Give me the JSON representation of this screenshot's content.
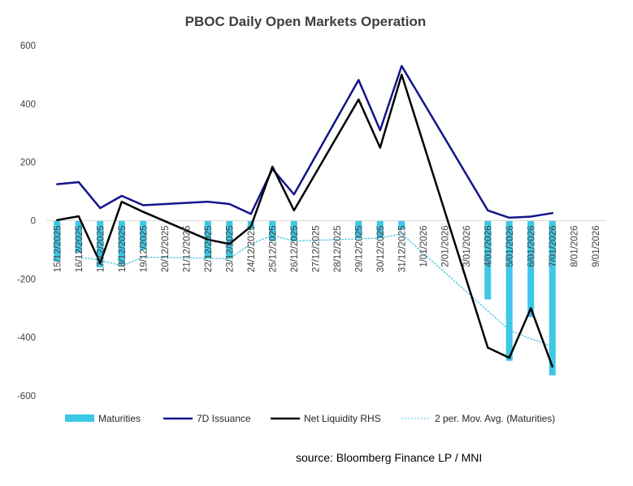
{
  "chart_data": {
    "type": "bar",
    "title": "PBOC Daily Open Markets Operation",
    "source": "source:  Bloomberg Finance LP / MNI",
    "categories": [
      "15/12/2025",
      "16/12/2025",
      "17/12/2025",
      "18/12/2025",
      "19/12/2025",
      "20/12/2025",
      "21/12/2025",
      "22/12/2025",
      "23/12/2025",
      "24/12/2025",
      "25/12/2025",
      "26/12/2025",
      "27/12/2025",
      "28/12/2025",
      "29/12/2025",
      "30/12/2025",
      "31/12/2025",
      "1/01/2026",
      "2/01/2026",
      "3/01/2026",
      "4/01/2026",
      "5/01/2026",
      "6/01/2026",
      "7/01/2026",
      "8/01/2026",
      "9/01/2026"
    ],
    "ylim": [
      -600,
      600
    ],
    "yticks": [
      -600,
      -400,
      -200,
      0,
      200,
      400,
      600
    ],
    "grid": false,
    "legend_position": "bottom",
    "series": [
      {
        "name": "Maturities",
        "type": "bar",
        "color": "#3cc8e6",
        "values": [
          -140,
          -110,
          -160,
          -150,
          -100,
          null,
          null,
          -130,
          -130,
          -30,
          -70,
          -70,
          null,
          null,
          -60,
          -60,
          -30,
          null,
          null,
          null,
          -270,
          -480,
          -330,
          -530,
          null,
          null
        ]
      },
      {
        "name": "7D Issuance",
        "type": "line",
        "color": "#14148c",
        "values": [
          125,
          132,
          43,
          85,
          53,
          null,
          null,
          65,
          57,
          23,
          177,
          90,
          null,
          null,
          482,
          310,
          530,
          null,
          null,
          null,
          35,
          10,
          14,
          26,
          null,
          null
        ]
      },
      {
        "name": "Net Liquidity RHS",
        "type": "line",
        "color": "#000000",
        "values": [
          2,
          15,
          -145,
          65,
          30,
          null,
          null,
          -65,
          -80,
          -20,
          185,
          35,
          null,
          null,
          415,
          250,
          500,
          null,
          null,
          null,
          -435,
          -470,
          -300,
          -500,
          null,
          null
        ]
      },
      {
        "name": "2 per. Mov. Avg. (Maturities)",
        "type": "line",
        "style": "dotted",
        "color": "#3cc8e6",
        "values": [
          null,
          -125,
          -135,
          -155,
          -125,
          null,
          null,
          null,
          -130,
          -80,
          -50,
          -70,
          null,
          null,
          null,
          -60,
          -45,
          null,
          null,
          null,
          null,
          -375,
          -405,
          -430,
          null,
          null
        ]
      }
    ]
  }
}
